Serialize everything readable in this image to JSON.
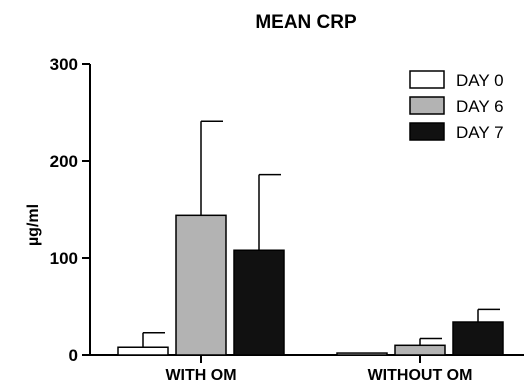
{
  "chart_data": {
    "type": "bar",
    "title": "MEAN CRP",
    "xlabel": "",
    "ylabel": "µg/ml",
    "ylim": [
      0,
      300
    ],
    "yticks": [
      0,
      100,
      200,
      300
    ],
    "categories": [
      "WITH OM",
      "WITHOUT OM"
    ],
    "series": [
      {
        "name": "DAY 0",
        "color": "#ffffff",
        "values": [
          8,
          2
        ],
        "errors": [
          15,
          0
        ]
      },
      {
        "name": "DAY 6",
        "color": "#b3b3b3",
        "values": [
          144,
          10
        ],
        "errors": [
          97,
          7
        ]
      },
      {
        "name": "DAY 7",
        "color": "#111111",
        "values": [
          108,
          34
        ],
        "errors": [
          78,
          13
        ]
      }
    ],
    "grid": false,
    "legend_position": "top-right"
  }
}
